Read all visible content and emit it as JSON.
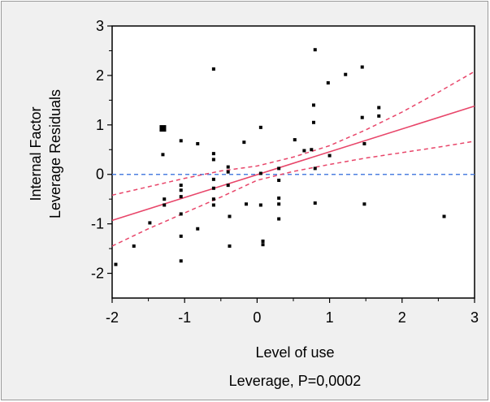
{
  "chart_data": {
    "type": "scatter",
    "xlabel": "Level of use",
    "ylabel_lines": [
      "Internal Factor",
      "Leverage Residuals"
    ],
    "subtitle": "Leverage, P=0,0002",
    "xlim": [
      -2,
      3
    ],
    "ylim": [
      -2.5,
      3
    ],
    "xticks": [
      "-2",
      "-1",
      "0",
      "1",
      "2",
      "3"
    ],
    "yticks": [
      "3",
      "2",
      "1",
      "0",
      "-1",
      "-2"
    ],
    "xtick_values": [
      -2,
      -1,
      0,
      1,
      2,
      3
    ],
    "ytick_values": [
      3,
      2,
      1,
      0,
      -1,
      -2
    ],
    "reference_line": {
      "y": 0,
      "style": "dashed",
      "color": "#4d7fe0"
    },
    "fit_line": {
      "x": [
        -2,
        3
      ],
      "y": [
        -0.93,
        1.38
      ],
      "color": "#e8466a"
    },
    "confidence_upper": {
      "x": [
        -2,
        -1.5,
        -1,
        -0.5,
        0,
        0.5,
        1,
        1.5,
        2,
        2.5,
        3
      ],
      "y": [
        -0.42,
        -0.25,
        -0.08,
        0.07,
        0.17,
        0.35,
        0.58,
        0.9,
        1.26,
        1.66,
        2.08
      ],
      "color": "#e8466a"
    },
    "confidence_lower": {
      "x": [
        -2,
        -1.5,
        -1,
        -0.5,
        0,
        0.5,
        1,
        1.5,
        2,
        2.5,
        3
      ],
      "y": [
        -1.45,
        -1.1,
        -0.78,
        -0.46,
        -0.12,
        0.06,
        0.2,
        0.33,
        0.44,
        0.55,
        0.67
      ],
      "color": "#e8466a"
    },
    "points": [
      {
        "x": -1.95,
        "y": -1.82
      },
      {
        "x": -1.7,
        "y": -1.45
      },
      {
        "x": -1.48,
        "y": -0.98
      },
      {
        "x": -1.3,
        "y": 0.93,
        "big": true
      },
      {
        "x": -1.3,
        "y": 0.4
      },
      {
        "x": -1.28,
        "y": -0.5
      },
      {
        "x": -1.28,
        "y": -0.62
      },
      {
        "x": -1.05,
        "y": 0.68
      },
      {
        "x": -1.05,
        "y": -0.22
      },
      {
        "x": -1.05,
        "y": -0.32
      },
      {
        "x": -1.05,
        "y": -0.45
      },
      {
        "x": -1.05,
        "y": -0.8
      },
      {
        "x": -1.05,
        "y": -1.25
      },
      {
        "x": -1.05,
        "y": -1.75
      },
      {
        "x": -0.82,
        "y": 0.62
      },
      {
        "x": -0.82,
        "y": -1.1
      },
      {
        "x": -0.6,
        "y": 2.13
      },
      {
        "x": -0.6,
        "y": 0.42
      },
      {
        "x": -0.6,
        "y": 0.3
      },
      {
        "x": -0.6,
        "y": -0.1
      },
      {
        "x": -0.6,
        "y": -0.28
      },
      {
        "x": -0.6,
        "y": -0.5
      },
      {
        "x": -0.6,
        "y": -0.62
      },
      {
        "x": -0.4,
        "y": 0.15
      },
      {
        "x": -0.4,
        "y": 0.05
      },
      {
        "x": -0.4,
        "y": -0.22
      },
      {
        "x": -0.38,
        "y": -0.85
      },
      {
        "x": -0.38,
        "y": -1.45
      },
      {
        "x": -0.18,
        "y": 0.65
      },
      {
        "x": -0.15,
        "y": -0.6
      },
      {
        "x": 0.05,
        "y": 0.95
      },
      {
        "x": 0.05,
        "y": 0.02
      },
      {
        "x": 0.05,
        "y": -0.62
      },
      {
        "x": 0.08,
        "y": -1.35
      },
      {
        "x": 0.08,
        "y": -1.42
      },
      {
        "x": 0.3,
        "y": 0.12
      },
      {
        "x": 0.3,
        "y": -0.12
      },
      {
        "x": 0.3,
        "y": -0.48
      },
      {
        "x": 0.3,
        "y": -0.6
      },
      {
        "x": 0.3,
        "y": -0.9
      },
      {
        "x": 0.52,
        "y": 0.7
      },
      {
        "x": 0.65,
        "y": 0.48
      },
      {
        "x": 0.75,
        "y": 0.5
      },
      {
        "x": 0.78,
        "y": 1.4
      },
      {
        "x": 0.78,
        "y": 1.05
      },
      {
        "x": 0.8,
        "y": 2.52
      },
      {
        "x": 0.8,
        "y": 0.12
      },
      {
        "x": 0.8,
        "y": -0.58
      },
      {
        "x": 0.98,
        "y": 1.85
      },
      {
        "x": 1.0,
        "y": 0.38
      },
      {
        "x": 1.22,
        "y": 2.02
      },
      {
        "x": 1.45,
        "y": 2.17
      },
      {
        "x": 1.45,
        "y": 1.15
      },
      {
        "x": 1.48,
        "y": 0.62
      },
      {
        "x": 1.48,
        "y": -0.6
      },
      {
        "x": 1.68,
        "y": 1.35
      },
      {
        "x": 1.68,
        "y": 1.18
      },
      {
        "x": 2.58,
        "y": -0.85
      }
    ],
    "grid": false,
    "legend": "none"
  }
}
